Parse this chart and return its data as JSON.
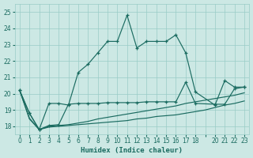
{
  "xlabel": "Humidex (Indice chaleur)",
  "bg_color": "#cce8e4",
  "grid_color": "#99ccc6",
  "line_color": "#1a6b60",
  "ylim": [
    17.5,
    25.5
  ],
  "xlim": [
    -0.5,
    23.5
  ],
  "yticks": [
    18,
    19,
    20,
    21,
    22,
    23,
    24,
    25
  ],
  "xtick_positions": [
    0,
    1,
    2,
    3,
    4,
    5,
    6,
    7,
    8,
    9,
    10,
    11,
    12,
    13,
    14,
    15,
    16,
    17,
    18,
    19,
    20,
    21,
    22,
    23
  ],
  "xtick_labels": [
    "0",
    "1",
    "2",
    "3",
    "4",
    "5",
    "6",
    "7",
    "8",
    "9",
    "10",
    "11",
    "12",
    "13",
    "14",
    "15",
    "16",
    "17",
    "18",
    "",
    "20",
    "21",
    "22",
    "23"
  ],
  "line1_x": [
    0,
    1,
    2,
    3,
    4,
    5,
    6,
    7,
    8,
    9,
    10,
    11,
    12,
    13,
    14,
    15,
    16,
    17,
    18,
    20,
    21,
    22,
    23
  ],
  "line1_y": [
    20.2,
    18.8,
    17.8,
    19.4,
    19.4,
    19.3,
    21.3,
    21.8,
    22.5,
    23.2,
    23.2,
    24.8,
    22.8,
    23.2,
    23.2,
    23.2,
    23.6,
    22.5,
    20.1,
    19.3,
    20.8,
    20.4,
    20.4
  ],
  "line2_x": [
    0,
    1,
    2,
    3,
    4,
    5,
    6,
    7,
    8,
    9,
    10,
    11,
    12,
    13,
    14,
    15,
    16,
    17,
    18,
    20,
    21,
    22,
    23
  ],
  "line2_y": [
    20.2,
    18.8,
    17.8,
    18.05,
    18.1,
    19.35,
    19.4,
    19.4,
    19.4,
    19.45,
    19.45,
    19.45,
    19.45,
    19.5,
    19.5,
    19.5,
    19.5,
    20.7,
    19.4,
    19.35,
    19.35,
    20.3,
    20.4
  ],
  "line3_x": [
    0,
    1,
    2,
    3,
    4,
    5,
    6,
    7,
    8,
    9,
    10,
    11,
    12,
    13,
    14,
    15,
    16,
    17,
    18,
    19,
    20,
    21,
    22,
    23
  ],
  "line3_y": [
    20.2,
    18.5,
    17.8,
    18.0,
    18.05,
    18.1,
    18.2,
    18.3,
    18.45,
    18.55,
    18.65,
    18.75,
    18.85,
    18.95,
    19.05,
    19.15,
    19.25,
    19.4,
    19.5,
    19.6,
    19.7,
    19.8,
    19.9,
    20.05
  ],
  "line4_x": [
    0,
    1,
    2,
    3,
    4,
    5,
    6,
    7,
    8,
    9,
    10,
    11,
    12,
    13,
    14,
    15,
    16,
    17,
    18,
    19,
    20,
    21,
    22,
    23
  ],
  "line4_y": [
    20.2,
    18.45,
    17.8,
    17.95,
    18.0,
    18.05,
    18.1,
    18.15,
    18.2,
    18.25,
    18.3,
    18.35,
    18.45,
    18.5,
    18.6,
    18.65,
    18.7,
    18.8,
    18.9,
    19.0,
    19.15,
    19.3,
    19.4,
    19.55
  ]
}
